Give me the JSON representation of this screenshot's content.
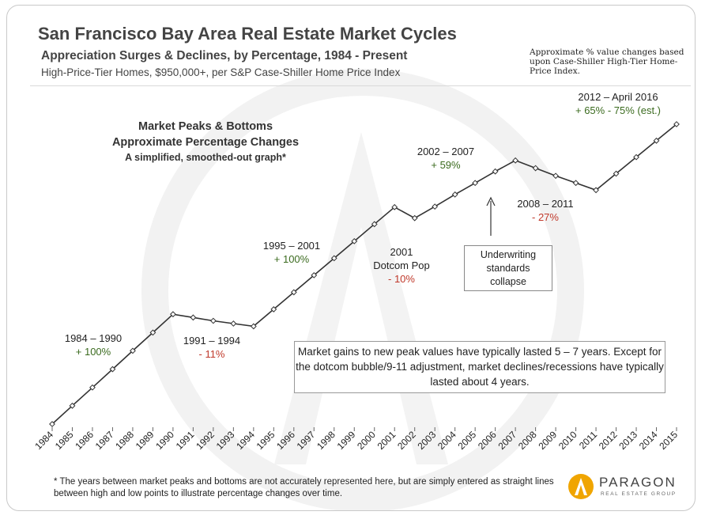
{
  "header": {
    "title": "San Francisco Bay Area Real Estate Market Cycles",
    "subtitle": "Appreciation Surges & Declines, by Percentage, 1984 - Present",
    "subtitle2": "High-Price-Tier Homes, $950,000+,  per S&P Case-Shiller Home Price Index",
    "note": "Approximate % value changes based upon Case-Shiller High-Tier Home-Price Index."
  },
  "chart_title_block": {
    "line1": "Market Peaks & Bottoms",
    "line2": "Approximate Percentage Changes",
    "line3": "A simplified, smoothed-out graph*"
  },
  "annotations": {
    "a1984_1990": {
      "period": "1984 – 1990",
      "change": "+ 100%"
    },
    "a1991_1994": {
      "period": "1991 – 1994",
      "change": "- 11%"
    },
    "a1995_2001": {
      "period": "1995 – 2001",
      "change": "+ 100%"
    },
    "a2001": {
      "period": "2001",
      "desc": "Dotcom Pop",
      "change": "- 10%"
    },
    "a2002_2007": {
      "period": "2002 – 2007",
      "change": "+ 59%"
    },
    "a2008_2011": {
      "period": "2008 – 2011",
      "change": "- 27%"
    },
    "a2012_2016": {
      "period": "2012 – April 2016",
      "change": "+ 65% - 75% (est.)"
    }
  },
  "callout": {
    "line1": "Underwriting",
    "line2": "standards",
    "line3": "collapse"
  },
  "infobox": {
    "text": "Market gains  to new peak values have typically lasted 5 – 7 years. Except for the dotcom bubble/9-11 adjustment, market declines/recessions have typically lasted about 4 years."
  },
  "footer": {
    "text": "* The years between market peaks and bottoms are not accurately represented here, but are simply entered as straight lines between high and low points to illustrate percentage changes over time."
  },
  "logo": {
    "name": "PARAGON",
    "sub": "REAL ESTATE GROUP"
  },
  "colors": {
    "line": "#333333",
    "green": "#3b6b1f",
    "red": "#c0392b",
    "logo_accent": "#f0a500"
  },
  "chart_data": {
    "type": "line",
    "x_labels": [
      "1984",
      "1985",
      "1986",
      "1987",
      "1988",
      "1989",
      "1990",
      "1991",
      "1992",
      "1993",
      "1994",
      "1995",
      "1996",
      "1997",
      "1998",
      "1999",
      "2000",
      "2001",
      "2002",
      "2003",
      "2004",
      "2005",
      "2006",
      "2007",
      "2008",
      "2009",
      "2010",
      "2011",
      "2012",
      "2013",
      "2014",
      "2015"
    ],
    "points": [
      {
        "x": 1984,
        "y": 0
      },
      {
        "x": 1985,
        "y": 16.7
      },
      {
        "x": 1986,
        "y": 33.3
      },
      {
        "x": 1987,
        "y": 50
      },
      {
        "x": 1988,
        "y": 66.7
      },
      {
        "x": 1989,
        "y": 83.3
      },
      {
        "x": 1990,
        "y": 100
      },
      {
        "x": 1991,
        "y": 97
      },
      {
        "x": 1992,
        "y": 94
      },
      {
        "x": 1993,
        "y": 91.5
      },
      {
        "x": 1994,
        "y": 89
      },
      {
        "x": 1995,
        "y": 104.5
      },
      {
        "x": 1996,
        "y": 120
      },
      {
        "x": 1997,
        "y": 135.5
      },
      {
        "x": 1998,
        "y": 151
      },
      {
        "x": 1999,
        "y": 166.5
      },
      {
        "x": 2000,
        "y": 182
      },
      {
        "x": 2001,
        "y": 197.5
      },
      {
        "x": 2002,
        "y": 187.5
      },
      {
        "x": 2003,
        "y": 198
      },
      {
        "x": 2004,
        "y": 209
      },
      {
        "x": 2005,
        "y": 219.5
      },
      {
        "x": 2006,
        "y": 230
      },
      {
        "x": 2007,
        "y": 240
      },
      {
        "x": 2008,
        "y": 233
      },
      {
        "x": 2009,
        "y": 226
      },
      {
        "x": 2010,
        "y": 219.5
      },
      {
        "x": 2011,
        "y": 213
      },
      {
        "x": 2012,
        "y": 228
      },
      {
        "x": 2013,
        "y": 243
      },
      {
        "x": 2014,
        "y": 258
      },
      {
        "x": 2015,
        "y": 273
      }
    ],
    "xlim": [
      1984,
      2015
    ],
    "ylim": [
      0,
      273
    ],
    "grid": false,
    "legend": "none"
  }
}
